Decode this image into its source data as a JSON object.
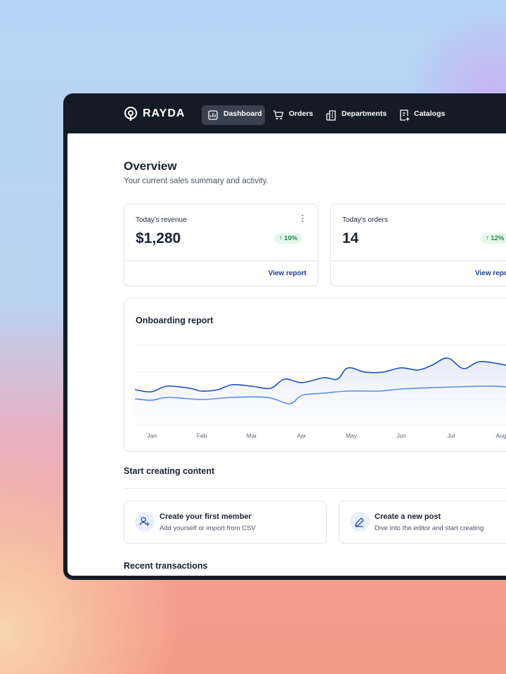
{
  "nav": {
    "brand": "RAYDA",
    "items": [
      "Dashboard",
      "Orders",
      "Departments",
      "Catalogs"
    ]
  },
  "header": {
    "title": "Overview",
    "subtitle": "Your current sales summary and activity."
  },
  "stats": [
    {
      "label": "Today’s revenue",
      "value": "$1,280",
      "change": "10%",
      "link": "View report"
    },
    {
      "label": "Today’s orders",
      "value": "14",
      "change": "12%",
      "link": "View report"
    }
  ],
  "chart_data": {
    "type": "line",
    "title": "Onboarding report",
    "xticks": [
      {
        "value": 0,
        "label": "Jan"
      },
      {
        "value": 1,
        "label": "Feb"
      },
      {
        "value": 2,
        "label": "Mar"
      },
      {
        "value": 3,
        "label": "Apr"
      },
      {
        "value": 4,
        "label": "May"
      },
      {
        "value": 5,
        "label": "Jun"
      },
      {
        "value": 6,
        "label": "Jul"
      },
      {
        "value": 7,
        "label": "Aug"
      }
    ],
    "xlim": [
      -0.34,
      7.1
    ],
    "ylim": [
      0,
      114
    ],
    "yticks": [
      0,
      38,
      76,
      114
    ],
    "grid": true,
    "series": [
      {
        "color": "#1e4fb8",
        "x": [
          -0.34,
          -0.01,
          0.3,
          0.76,
          1,
          1.32,
          1.61,
          2,
          2.38,
          2.66,
          3.01,
          3.44,
          3.72,
          3.93,
          4.28,
          4.63,
          4.99,
          5.34,
          5.62,
          5.93,
          6.25,
          6.58,
          7.1
        ],
        "values": [
          51,
          48,
          56,
          53,
          49,
          51,
          58,
          56,
          53,
          66,
          61,
          68,
          66,
          82,
          76,
          76,
          82,
          79,
          86,
          96,
          81,
          91,
          86
        ]
      },
      {
        "color": "#5a8fe6",
        "x": [
          -0.34,
          -0.01,
          0.34,
          1,
          1.61,
          2.31,
          2.76,
          3.01,
          3.44,
          3.93,
          4.56,
          4.99,
          5.69,
          6.68,
          7.1
        ],
        "values": [
          38,
          36,
          40,
          37,
          40,
          40,
          31,
          43,
          46,
          49,
          49,
          52,
          54,
          56,
          55
        ]
      }
    ]
  },
  "content": {
    "title": "Start creating content",
    "cards": [
      {
        "title": "Create your first member",
        "subtitle": "Add yourself or import from CSV"
      },
      {
        "title": "Create a new post",
        "subtitle": "Dive into the editor and start creating"
      }
    ]
  },
  "transactions": {
    "title": "Recent transactions"
  }
}
